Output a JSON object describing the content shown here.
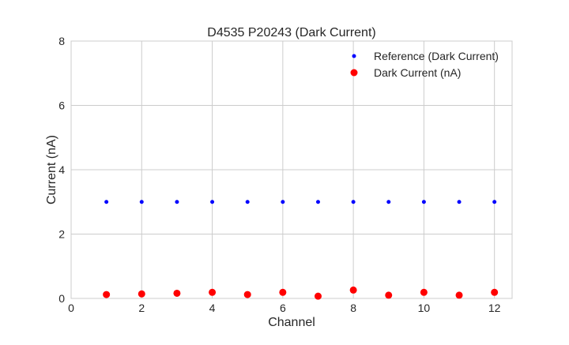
{
  "chart_data": {
    "type": "scatter",
    "title": "D4535 P20243 (Dark Current)",
    "xlabel": "Channel",
    "ylabel": "Current (nA)",
    "xlim": [
      0,
      12.5
    ],
    "ylim": [
      0,
      8
    ],
    "xticks": [
      0,
      2,
      4,
      6,
      8,
      10,
      12
    ],
    "yticks": [
      0,
      2,
      4,
      6,
      8
    ],
    "grid": true,
    "legend_position": "top-right",
    "x": [
      1,
      2,
      3,
      4,
      5,
      6,
      7,
      8,
      9,
      10,
      11,
      12
    ],
    "series": [
      {
        "name": "Reference (Dark Current)",
        "color": "#0000ff",
        "marker_size": "small",
        "values": [
          3,
          3,
          3,
          3,
          3,
          3,
          3,
          3,
          3,
          3,
          3,
          3
        ]
      },
      {
        "name": "Dark Current (nA)",
        "color": "#ff0000",
        "marker_size": "large",
        "values": [
          0.12,
          0.14,
          0.16,
          0.19,
          0.12,
          0.19,
          0.07,
          0.26,
          0.1,
          0.19,
          0.1,
          0.19
        ]
      }
    ]
  }
}
